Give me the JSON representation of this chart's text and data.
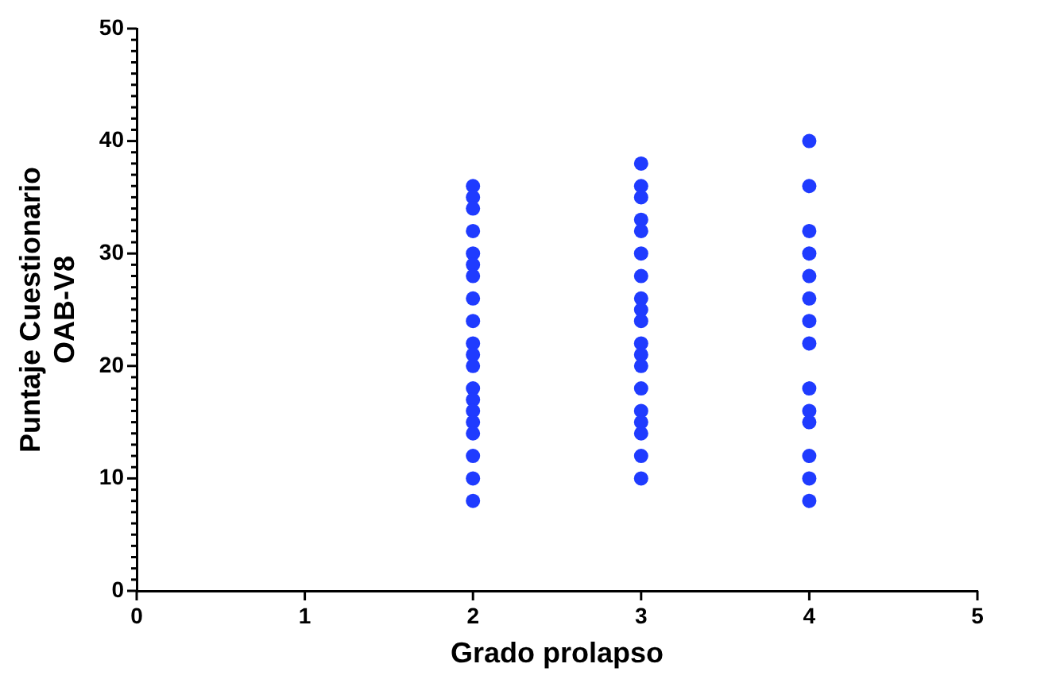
{
  "chart_data": {
    "type": "scatter",
    "xlabel": "Grado prolapso",
    "ylabel": "Puntaje Cuestionario\nOAB-V8",
    "color": "#1f3bff",
    "marker": "circle",
    "x": [
      2,
      2,
      2,
      2,
      2,
      2,
      2,
      2,
      2,
      2,
      2,
      2,
      2,
      2,
      2,
      2,
      2,
      2,
      2,
      2,
      3,
      3,
      3,
      3,
      3,
      3,
      3,
      3,
      3,
      3,
      3,
      3,
      3,
      3,
      3,
      3,
      3,
      3,
      3,
      4,
      4,
      4,
      4,
      4,
      4,
      4,
      4,
      4,
      4,
      4,
      4,
      4,
      4
    ],
    "values": [
      36,
      35,
      34,
      32,
      30,
      29,
      28,
      26,
      24,
      22,
      21,
      20,
      18,
      17,
      16,
      15,
      14,
      12,
      10,
      8,
      38,
      36,
      35,
      33,
      32,
      30,
      28,
      26,
      25,
      24,
      22,
      21,
      20,
      18,
      16,
      15,
      14,
      12,
      10,
      40,
      36,
      32,
      30,
      28,
      26,
      24,
      22,
      18,
      16,
      15,
      12,
      10,
      8
    ],
    "xlim": [
      0,
      5
    ],
    "xticks": [
      0,
      1,
      2,
      3,
      4,
      5
    ],
    "ylim": [
      0,
      50
    ],
    "yticks": [
      0,
      {
        "value": 1,
        "label": null
      },
      {
        "value": 2,
        "label": null
      },
      {
        "value": 3,
        "label": null
      },
      {
        "value": 4,
        "label": null
      },
      {
        "value": 5,
        "label": null
      },
      {
        "value": 6,
        "label": null
      },
      {
        "value": 7,
        "label": null
      },
      {
        "value": 8,
        "label": null
      },
      {
        "value": 9,
        "label": null
      },
      10,
      {
        "value": 11,
        "label": null
      },
      {
        "value": 12,
        "label": null
      },
      {
        "value": 13,
        "label": null
      },
      {
        "value": 14,
        "label": null
      },
      {
        "value": 15,
        "label": null
      },
      {
        "value": 16,
        "label": null
      },
      {
        "value": 17,
        "label": null
      },
      {
        "value": 18,
        "label": null
      },
      {
        "value": 19,
        "label": null
      },
      20,
      {
        "value": 21,
        "label": null
      },
      {
        "value": 22,
        "label": null
      },
      {
        "value": 23,
        "label": null
      },
      {
        "value": 24,
        "label": null
      },
      {
        "value": 25,
        "label": null
      },
      {
        "value": 26,
        "label": null
      },
      {
        "value": 27,
        "label": null
      },
      {
        "value": 28,
        "label": null
      },
      {
        "value": 29,
        "label": null
      },
      30,
      {
        "value": 31,
        "label": null
      },
      {
        "value": 32,
        "label": null
      },
      {
        "value": 33,
        "label": null
      },
      {
        "value": 34,
        "label": null
      },
      {
        "value": 35,
        "label": null
      },
      {
        "value": 36,
        "label": null
      },
      {
        "value": 37,
        "label": null
      },
      {
        "value": 38,
        "label": null
      },
      {
        "value": 39,
        "label": null
      },
      40,
      {
        "value": 41,
        "label": null
      },
      {
        "value": 42,
        "label": null
      },
      {
        "value": 43,
        "label": null
      },
      {
        "value": 44,
        "label": null
      },
      {
        "value": 45,
        "label": null
      },
      {
        "value": 46,
        "label": null
      },
      {
        "value": 47,
        "label": null
      },
      {
        "value": 48,
        "label": null
      },
      {
        "value": 49,
        "label": null
      },
      50
    ]
  }
}
